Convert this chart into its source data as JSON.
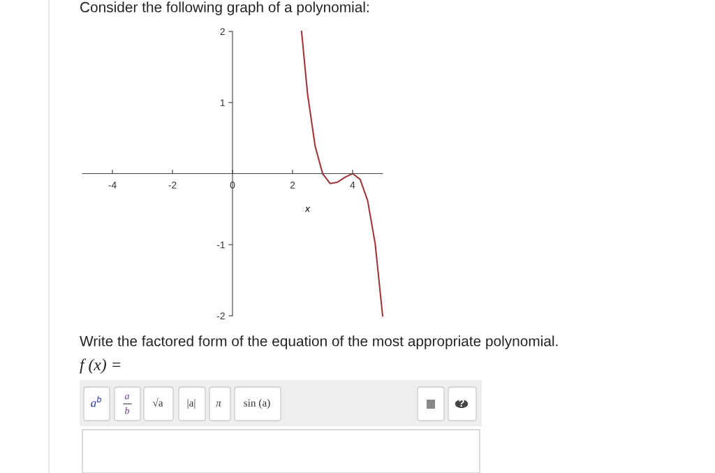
{
  "chart_data": {
    "type": "line",
    "title": "Consider the following graph of a polynomial:",
    "xlabel": "x",
    "series": [
      {
        "color": "#a0363c",
        "x": [
          2.3,
          2.5,
          2.75,
          3.0,
          3.25,
          3.5,
          3.75,
          4.0,
          4.25,
          4.5,
          4.75,
          5.0
        ],
        "values": [
          2.0,
          1.12,
          0.39,
          0.0,
          -0.14,
          -0.12,
          -0.05,
          0.0,
          -0.08,
          -0.38,
          -0.98,
          -2.0
        ]
      }
    ],
    "xlim": [
      -5,
      5
    ],
    "ylim": [
      -2,
      2
    ],
    "xticks": [
      -4,
      -2,
      0,
      2,
      4
    ],
    "yticks": [
      {
        "value": -2,
        "label": "-2"
      },
      {
        "value": -1,
        "label": "-1"
      },
      1,
      2
    ],
    "grid": false,
    "legend": false,
    "marker": "none",
    "line_style": "solid",
    "annotations": [
      "Write the factored form of the equation of the most appropriate polynomial.",
      "f (x) =",
      "a$^{b}$",
      "a",
      "b",
      "√a",
      "|a|",
      "π",
      "sin (a)",
      "?"
    ]
  }
}
